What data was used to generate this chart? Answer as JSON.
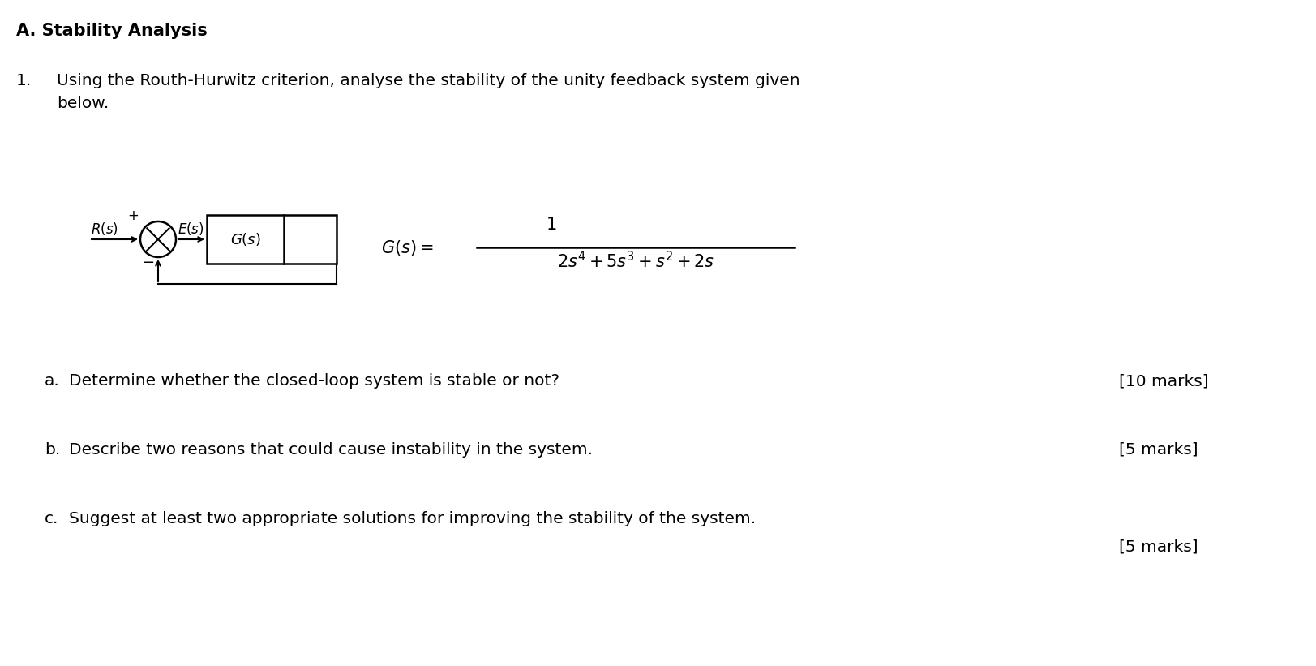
{
  "title": "A. Stability Analysis",
  "background_color": "#ffffff",
  "question_number": "1.",
  "question_line1": "Using the Routh-Hurwitz criterion, analyse the stability of the unity feedback system given",
  "question_line2": "below.",
  "sub_a_label": "a.",
  "sub_a_text": "Determine whether the closed-loop system is stable or not?",
  "sub_a_marks": "[10 marks]",
  "sub_b_label": "b.",
  "sub_b_text": "Describe two reasons that could cause instability in the system.",
  "sub_b_marks": "[5 marks]",
  "sub_c_label": "c.",
  "sub_c_text": "Suggest at least two appropriate solutions for improving the stability of the system.",
  "sub_c_marks": "[5 marks]",
  "title_fontsize": 15,
  "body_fontsize": 14.5,
  "diag_fontsize": 12,
  "eq_fontsize": 15
}
